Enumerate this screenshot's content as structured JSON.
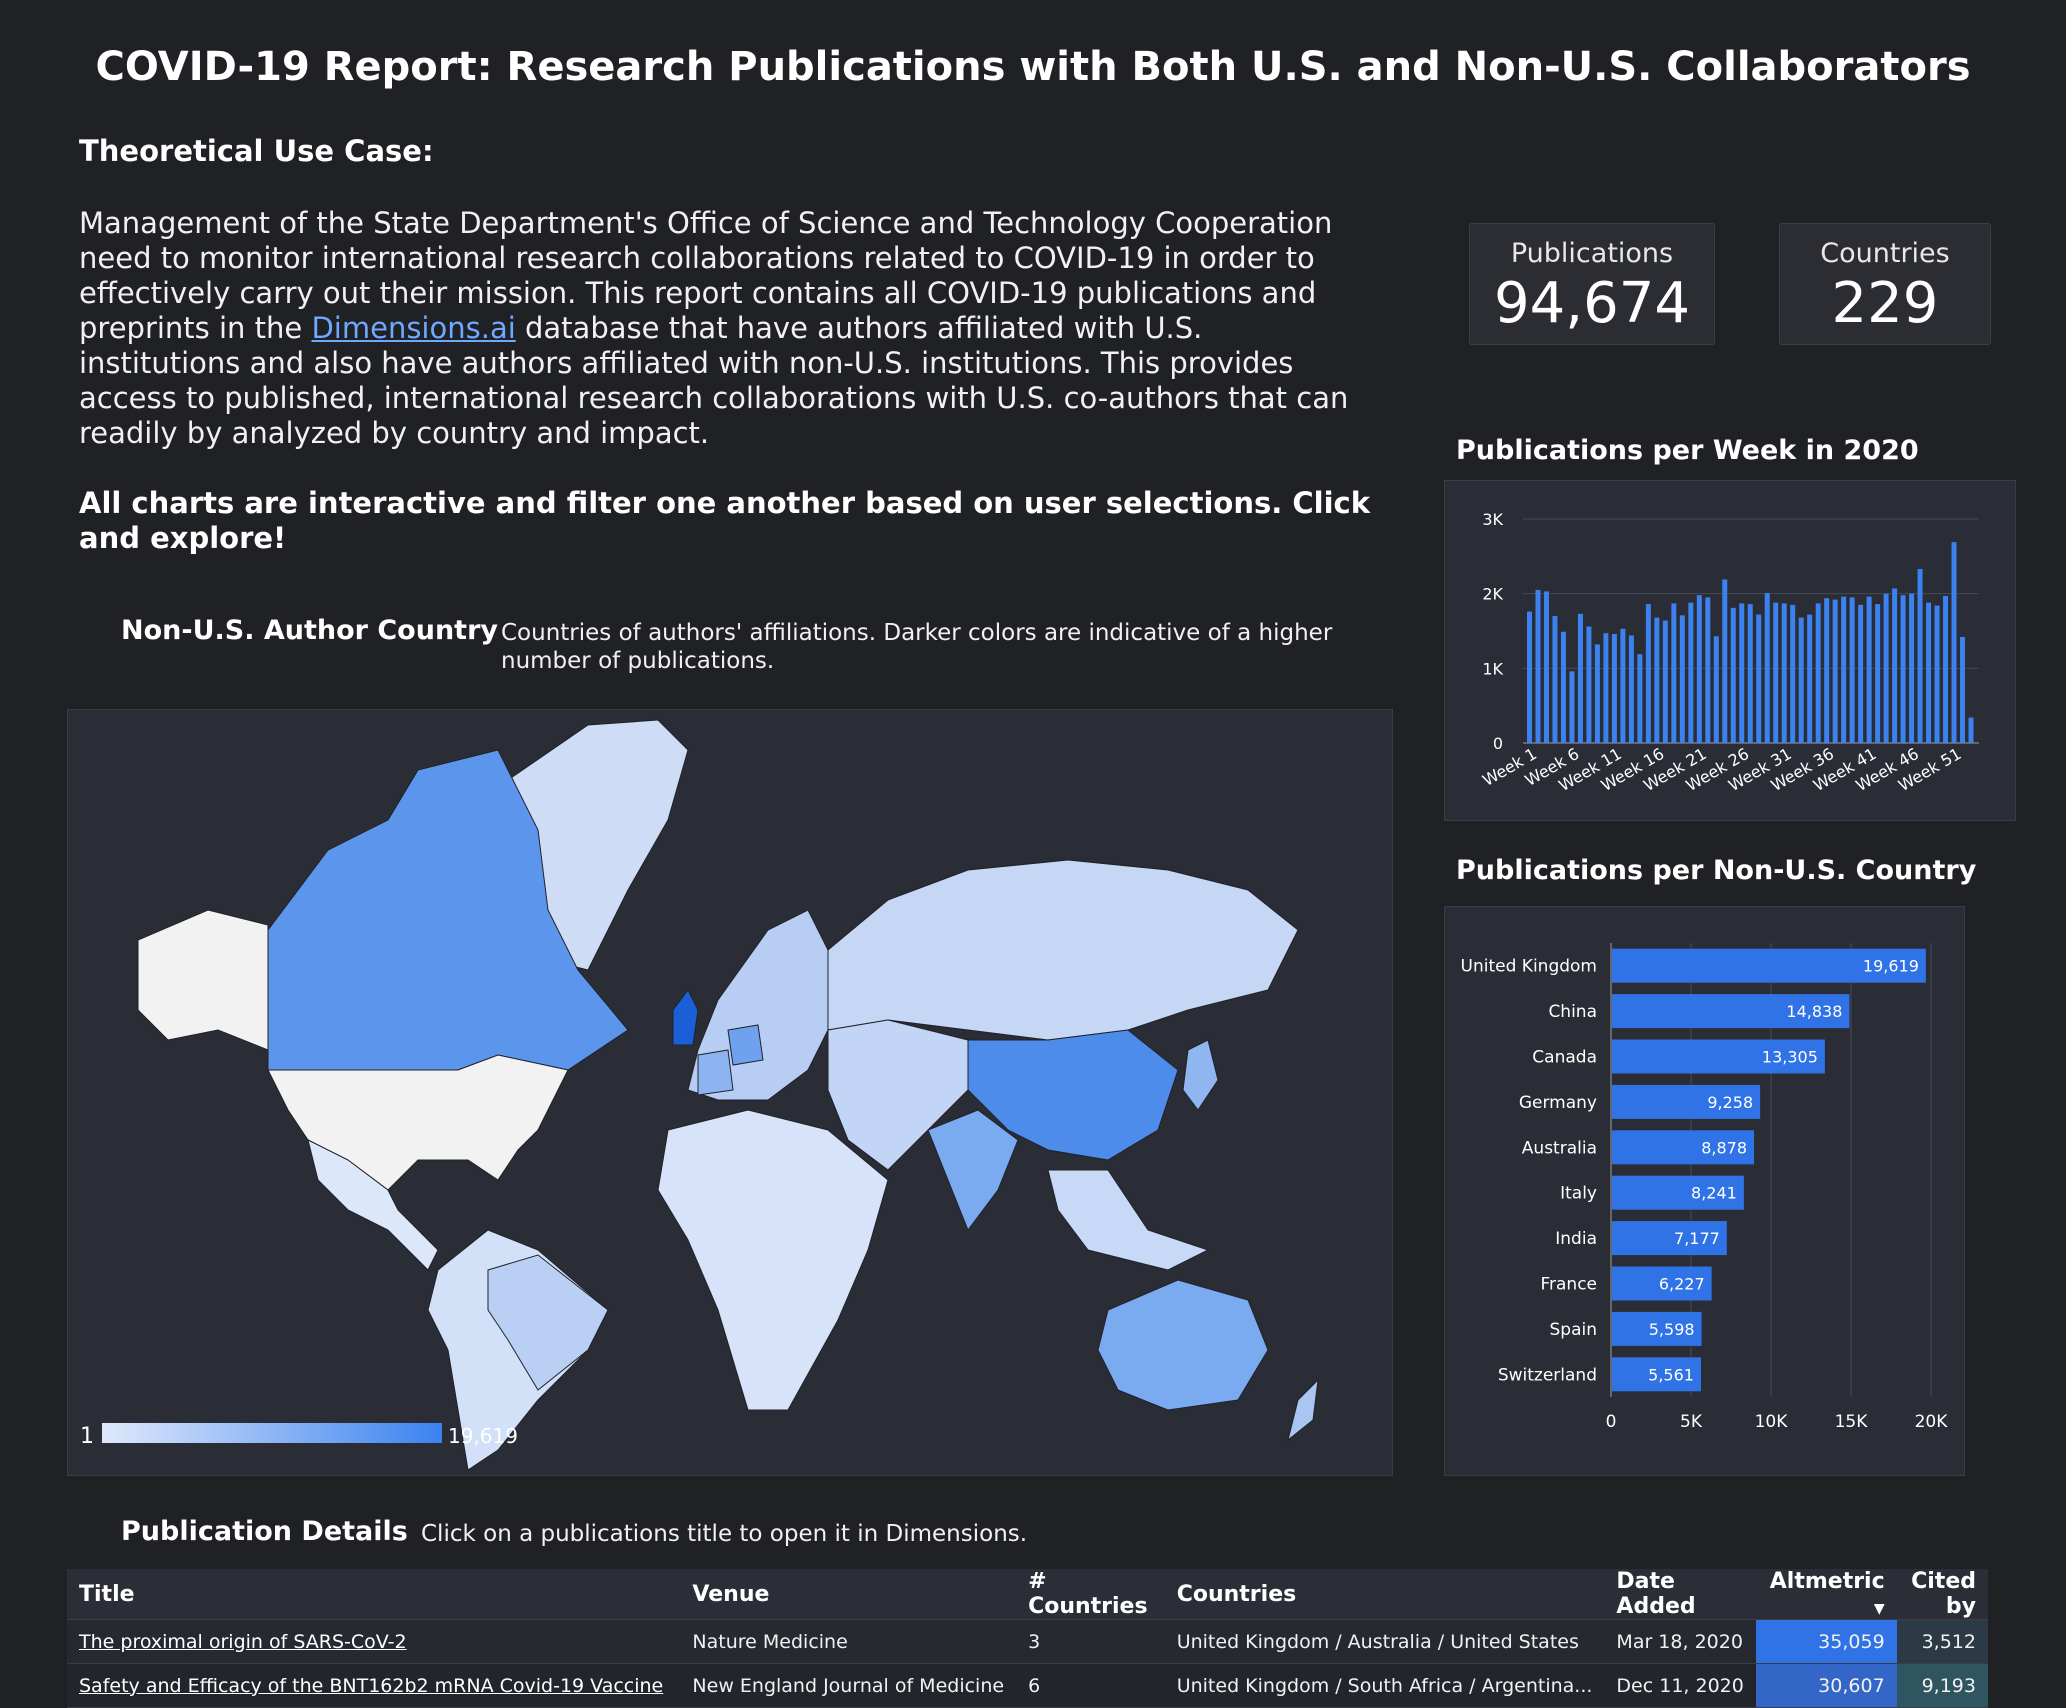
{
  "title": "COVID-19 Report: Research Publications with Both U.S. and Non-U.S. Collaborators",
  "use_case": {
    "heading": "Theoretical Use Case:",
    "body_before_link": "Management of the State Department's Office of Science and Technology Cooperation need to monitor international research collaborations related to COVID-19 in order to effectively carry out their mission.  This report contains all COVID-19 publications and preprints in the ",
    "link_text": "Dimensions.ai",
    "body_after_link": " database that have authors affiliated with U.S. institutions and also have authors affiliated with non-U.S. institutions.  This provides access to published, international research collaborations with U.S. co-authors that can readily by analyzed by country and impact.",
    "cta": "All charts are interactive and filter one another based on user selections.  Click and explore!"
  },
  "kpis": [
    {
      "label": "Publications",
      "value": "94,674"
    },
    {
      "label": "Countries",
      "value": "229"
    }
  ],
  "map": {
    "title": "Non-U.S. Author Country",
    "note": "Countries of authors' affiliations. Darker colors are indicative of a higher number of publications.",
    "legend_min": "1",
    "legend_max": "19,619",
    "colors": {
      "low": "#dfe9fb",
      "high": "#3b82f0",
      "us": "#f2f2f2",
      "water": "#202229"
    }
  },
  "weekly_chart": {
    "title": "Publications per Week in 2020",
    "chart_data": {
      "type": "bar",
      "xlabel": "",
      "ylabel": "",
      "ylim": [
        0,
        3000
      ],
      "yticks": [
        "0",
        "1K",
        "2K",
        "3K"
      ],
      "xtick_labels": [
        "Week 1",
        "Week 6",
        "Week 11",
        "Week 16",
        "Week 21",
        "Week 26",
        "Week 31",
        "Week 36",
        "Week 41",
        "Week 46",
        "Week 51"
      ],
      "categories": [
        "Week 1",
        "Week 2",
        "Week 3",
        "Week 4",
        "Week 5",
        "Week 6",
        "Week 7",
        "Week 8",
        "Week 9",
        "Week 10",
        "Week 11",
        "Week 12",
        "Week 13",
        "Week 14",
        "Week 15",
        "Week 16",
        "Week 17",
        "Week 18",
        "Week 19",
        "Week 20",
        "Week 21",
        "Week 22",
        "Week 23",
        "Week 24",
        "Week 25",
        "Week 26",
        "Week 27",
        "Week 28",
        "Week 29",
        "Week 30",
        "Week 31",
        "Week 32",
        "Week 33",
        "Week 34",
        "Week 35",
        "Week 36",
        "Week 37",
        "Week 38",
        "Week 39",
        "Week 40",
        "Week 41",
        "Week 42",
        "Week 43",
        "Week 44",
        "Week 45",
        "Week 46",
        "Week 47",
        "Week 48",
        "Week 49",
        "Week 50",
        "Week 51",
        "Week 52",
        "Week 53"
      ],
      "values": [
        1760,
        2050,
        2030,
        1700,
        1490,
        960,
        1730,
        1560,
        1320,
        1470,
        1460,
        1530,
        1440,
        1190,
        1860,
        1680,
        1640,
        1870,
        1710,
        1880,
        1980,
        1950,
        1430,
        2190,
        1810,
        1870,
        1860,
        1720,
        2010,
        1880,
        1870,
        1850,
        1680,
        1720,
        1870,
        1940,
        1920,
        1960,
        1950,
        1850,
        1960,
        1860,
        2000,
        2070,
        1980,
        2000,
        2330,
        1880,
        1840,
        1970,
        2690,
        1420,
        340
      ],
      "color": "#3b82f0"
    }
  },
  "country_chart": {
    "title": "Publications per Non-U.S. Country",
    "chart_data": {
      "type": "bar",
      "orientation": "horizontal",
      "categories": [
        "United Kingdom",
        "China",
        "Canada",
        "Germany",
        "Australia",
        "Italy",
        "India",
        "France",
        "Spain",
        "Switzerland"
      ],
      "values": [
        19619,
        14838,
        13305,
        9258,
        8878,
        8241,
        7177,
        6227,
        5598,
        5561
      ],
      "value_labels": [
        "19,619",
        "14,838",
        "13,305",
        "9,258",
        "8,878",
        "8,241",
        "7,177",
        "6,227",
        "5,598",
        "5,561"
      ],
      "xlim": [
        0,
        20000
      ],
      "xticks": [
        "0",
        "5K",
        "10K",
        "15K",
        "20K"
      ],
      "color": "#2f73e6"
    }
  },
  "details": {
    "title": "Publication Details",
    "note": "Click on a publications title to open it in Dimensions.",
    "columns": [
      "Title",
      "Venue",
      "# Countries",
      "Countries",
      "Date Added",
      "Altmetric",
      "Cited by"
    ],
    "sort_indicator": "▼",
    "rows": [
      {
        "title": "The proximal origin of SARS-CoV-2",
        "venue": "Nature Medicine",
        "n_countries": "3",
        "countries": "United Kingdom / Australia / United States",
        "date": "Mar 18, 2020",
        "altmetric": "35,059",
        "cited_by": "3,512"
      },
      {
        "title": "Safety and Efficacy of the BNT162b2 mRNA Covid-19 Vaccine",
        "venue": "New England Journal of Medicine",
        "n_countries": "6",
        "countries": "United Kingdom / South Africa / Argentina...",
        "date": "Dec 11, 2020",
        "altmetric": "30,607",
        "cited_by": "9,193"
      }
    ]
  }
}
